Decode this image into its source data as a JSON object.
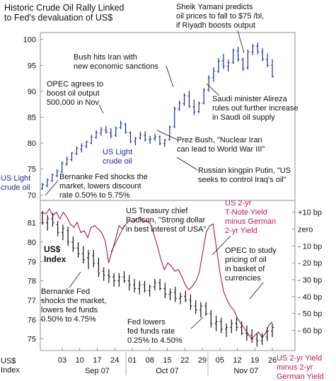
{
  "chart_data": [
    {
      "type": "ohlc",
      "title": "Historic Crude Oil Rally Linked to Fed's devaluation of US$",
      "series_label": "US Light crude oil",
      "label_inside": "US Light crude oil",
      "ylim": [
        68,
        100.5
      ],
      "y_ticks": [
        "100",
        "95",
        "90",
        "85",
        "80",
        "75",
        "70"
      ],
      "color": "#1a2a9a",
      "bars": [
        [
          71.2,
          72.3,
          71.0,
          72.0
        ],
        [
          71.8,
          73.2,
          71.5,
          72.9
        ],
        [
          72.8,
          74.1,
          72.5,
          73.9
        ],
        [
          73.7,
          75.0,
          73.4,
          74.6
        ],
        [
          74.5,
          76.5,
          74.2,
          76.1
        ],
        [
          76.0,
          77.4,
          75.6,
          76.9
        ],
        [
          76.8,
          78.3,
          76.5,
          78.1
        ],
        [
          77.9,
          79.4,
          77.7,
          79.0
        ],
        [
          78.8,
          80.0,
          78.2,
          79.5
        ],
        [
          79.4,
          80.5,
          79.0,
          80.2
        ],
        [
          80.0,
          81.6,
          79.8,
          81.2
        ],
        [
          81.1,
          82.5,
          80.9,
          82.0
        ],
        [
          81.9,
          83.1,
          81.4,
          82.6
        ],
        [
          82.5,
          83.3,
          81.8,
          82.2
        ],
        [
          82.0,
          82.9,
          80.9,
          81.4
        ],
        [
          81.5,
          83.2,
          81.2,
          82.9
        ],
        [
          83.0,
          84.3,
          82.7,
          83.8
        ],
        [
          83.6,
          83.9,
          81.8,
          82.1
        ],
        [
          82.0,
          82.3,
          80.0,
          80.4
        ],
        [
          80.3,
          81.2,
          79.6,
          80.9
        ],
        [
          81.0,
          82.2,
          80.7,
          81.6
        ],
        [
          81.5,
          82.3,
          80.3,
          80.7
        ],
        [
          80.6,
          81.4,
          79.9,
          80.8
        ],
        [
          80.9,
          81.8,
          80.4,
          81.2
        ],
        [
          81.2,
          81.5,
          79.6,
          79.9
        ],
        [
          79.9,
          80.8,
          79.3,
          80.6
        ],
        [
          80.7,
          83.4,
          80.5,
          83.1
        ],
        [
          83.2,
          87.1,
          82.9,
          86.6
        ],
        [
          86.6,
          88.2,
          86.2,
          87.7
        ],
        [
          87.6,
          89.6,
          87.2,
          89.2
        ],
        [
          89.1,
          90.1,
          86.8,
          87.1
        ],
        [
          87.0,
          88.4,
          85.4,
          86.0
        ],
        [
          86.1,
          88.0,
          85.8,
          87.7
        ],
        [
          87.7,
          90.6,
          87.5,
          90.2
        ],
        [
          90.3,
          93.1,
          89.9,
          92.6
        ],
        [
          92.7,
          94.6,
          91.8,
          93.9
        ],
        [
          93.9,
          96.4,
          93.5,
          95.8
        ],
        [
          95.9,
          97.2,
          94.3,
          94.9
        ],
        [
          94.8,
          96.1,
          93.8,
          95.5
        ],
        [
          95.6,
          98.2,
          95.3,
          97.9
        ],
        [
          97.8,
          98.6,
          95.7,
          96.1
        ],
        [
          96.0,
          96.5,
          93.9,
          94.4
        ],
        [
          94.5,
          98.1,
          94.2,
          97.6
        ],
        [
          97.6,
          99.1,
          97.0,
          98.7
        ],
        [
          98.7,
          99.4,
          97.1,
          97.6
        ],
        [
          97.6,
          98.3,
          95.8,
          96.2
        ],
        [
          96.1,
          97.3,
          94.6,
          95.0
        ],
        [
          95.0,
          96.2,
          92.6,
          92.9
        ]
      ]
    },
    {
      "type": "ohlc",
      "series_label": "US$ Index",
      "ylim": [
        74.4,
        81.9
      ],
      "y_ticks": [
        "81",
        "80",
        "79",
        "78",
        "77",
        "76",
        "75"
      ],
      "color": "#111111",
      "bars": [
        [
          81.5,
          81.6,
          80.9,
          81.0
        ],
        [
          81.0,
          81.4,
          80.6,
          81.2
        ],
        [
          81.2,
          81.5,
          80.8,
          81.0
        ],
        [
          80.9,
          81.1,
          80.3,
          80.5
        ],
        [
          80.5,
          80.9,
          80.1,
          80.7
        ],
        [
          80.6,
          80.8,
          79.8,
          80.0
        ],
        [
          80.0,
          80.3,
          79.5,
          79.7
        ],
        [
          79.7,
          80.0,
          79.2,
          79.4
        ],
        [
          79.4,
          79.8,
          78.9,
          79.1
        ],
        [
          79.2,
          79.6,
          78.6,
          79.4
        ],
        [
          79.3,
          79.6,
          78.7,
          78.9
        ],
        [
          78.9,
          79.2,
          78.2,
          78.4
        ],
        [
          78.5,
          78.7,
          78.0,
          78.3
        ],
        [
          78.3,
          78.6,
          77.9,
          78.2
        ],
        [
          78.2,
          78.4,
          77.7,
          78.0
        ],
        [
          78.0,
          78.4,
          77.7,
          78.2
        ],
        [
          78.2,
          78.5,
          77.9,
          78.0
        ],
        [
          78.0,
          78.3,
          77.5,
          77.8
        ],
        [
          77.8,
          78.1,
          77.4,
          77.6
        ],
        [
          77.6,
          78.0,
          77.3,
          77.8
        ],
        [
          77.8,
          78.0,
          77.4,
          77.5
        ],
        [
          77.5,
          77.8,
          77.2,
          77.7
        ],
        [
          77.7,
          78.1,
          77.5,
          77.9
        ],
        [
          77.9,
          78.1,
          77.5,
          77.6
        ],
        [
          77.6,
          77.9,
          77.1,
          77.3
        ],
        [
          77.3,
          77.6,
          77.0,
          77.4
        ],
        [
          77.4,
          77.7,
          76.9,
          77.1
        ],
        [
          77.1,
          77.4,
          76.8,
          77.2
        ],
        [
          77.2,
          77.5,
          76.9,
          77.0
        ],
        [
          77.0,
          77.3,
          76.5,
          76.7
        ],
        [
          76.7,
          77.0,
          76.3,
          76.5
        ],
        [
          76.5,
          76.9,
          76.1,
          76.7
        ],
        [
          76.7,
          76.9,
          76.2,
          76.3
        ],
        [
          76.3,
          76.5,
          75.6,
          75.8
        ],
        [
          75.8,
          76.2,
          75.4,
          75.9
        ],
        [
          75.9,
          76.1,
          75.3,
          75.5
        ],
        [
          75.5,
          75.8,
          75.1,
          75.6
        ],
        [
          75.6,
          76.0,
          75.3,
          75.8
        ],
        [
          75.8,
          76.1,
          75.4,
          75.6
        ],
        [
          75.6,
          75.9,
          75.2,
          75.3
        ],
        [
          75.3,
          75.7,
          74.9,
          75.2
        ],
        [
          75.2,
          75.5,
          74.8,
          75.0
        ],
        [
          75.0,
          75.3,
          74.6,
          74.9
        ],
        [
          74.9,
          75.3,
          74.7,
          75.1
        ],
        [
          75.1,
          75.6,
          74.9,
          75.4
        ],
        [
          75.4,
          75.8,
          75.1,
          75.6
        ]
      ]
    },
    {
      "type": "line",
      "series_label": "US 2-yr Yield minus 2-yr German Yield",
      "label_inside": "US 2-yr T-Note Yield minus German 2-yr Yield",
      "ylim": [
        -72,
        17
      ],
      "y_ticks": [
        "+10 bp",
        "zero",
        "- 10 bp",
        "- 20 bp",
        "- 30 bp",
        "- 40 bp",
        "- 50 bp",
        "- 60 bp"
      ],
      "color": "#a0185a",
      "values": [
        10,
        9,
        12,
        8,
        10,
        6,
        10,
        7,
        3,
        1,
        4,
        -2,
        -1,
        -5,
        1,
        2,
        0,
        -2,
        -7,
        -20,
        -13,
        -6,
        2,
        0,
        3,
        5,
        4,
        6,
        7,
        4,
        5,
        3,
        -3,
        -10,
        -18,
        -24,
        -20,
        -22,
        -25,
        -24,
        -28,
        -33,
        -36,
        -34,
        -31,
        -26,
        -14,
        -2,
        2,
        3,
        -12,
        -26,
        -37,
        -42,
        -46,
        -48,
        -53,
        -56,
        -59,
        -62,
        -65,
        -63,
        -61,
        -64,
        -62,
        -57,
        -55
      ]
    }
  ],
  "x_axis": {
    "ticks": [
      "03",
      "10",
      "17",
      "24",
      "01",
      "08",
      "15",
      "22",
      "29",
      "05",
      "12",
      "19",
      "26"
    ],
    "months": [
      "Sep 07",
      "Oct 07",
      "Nov 07"
    ],
    "corner_label_1": "US$",
    "corner_label_2": "Index"
  },
  "panel_labels": {
    "usd_index_1": "US$",
    "usd_index_2": "Index",
    "spread_corner_1": "US 2-yr Yield",
    "spread_corner_2": "minus 2-yr",
    "spread_corner_3": "German Yield",
    "oil_1": "US Light",
    "oil_2": "crude oil",
    "spread_1": "US 2-yr",
    "spread_2": "T-Note Yield",
    "spread_3": "minus German",
    "spread_4": "2-yr Yield"
  },
  "title": {
    "line1": "Historic Crude Oil Rally Linked",
    "line2": "to Fed's devaluation of US$"
  },
  "annotations": {
    "yamani": [
      "Sheik Yamani predicts",
      "oil prices to fall to $75 /bl,",
      "if Riyadh boosts output"
    ],
    "bush_iran": [
      "Bush hits Iran with",
      "new economic sanctions"
    ],
    "opec_boost": [
      "OPEC agrees to",
      "boost oil output",
      "500,000 in Nov"
    ],
    "alireza": [
      "Saudi minister Alireza",
      "rules out further increase",
      "in Saudi oil supply"
    ],
    "prez_bush": [
      "Prez Bush, \"Nuclear Iran",
      "can lead to World War III\""
    ],
    "putin": [
      "Russian kingpin Putin, \"US",
      "seeks to control Iraq's oil\""
    ],
    "bernanke_discount": [
      "Bernanke Fed shocks the",
      "market, lowers discount",
      "rate 0.50% to 5.75%"
    ],
    "paulson": [
      "US Treasury chief",
      "Paulson, \"Strong dollar",
      "in best interest of USA\""
    ],
    "opec_study": [
      "OPEC to study",
      "pricing of oil",
      "in basket of",
      "currencies"
    ],
    "bernanke_funds": [
      "Bernanke Fed",
      "shocks the market,",
      "lowers fed funds",
      "0.50% to 4.75%"
    ],
    "fed_lowers": [
      "Fed lowers",
      "fed funds rate",
      "0.25% to 4.50%"
    ]
  }
}
